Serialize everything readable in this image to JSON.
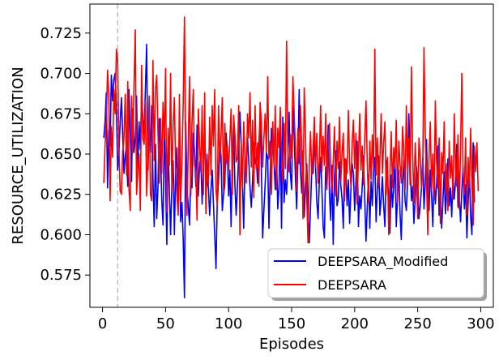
{
  "chart_data": {
    "type": "line",
    "title": "",
    "xlabel": "Episodes",
    "ylabel": "RESOURCE_UTILIZATION",
    "xlim": [
      -10,
      310
    ],
    "ylim": [
      0.555,
      0.743
    ],
    "xticks": [
      0,
      50,
      100,
      150,
      200,
      250,
      300
    ],
    "xtick_labels": [
      "0",
      "50",
      "100",
      "150",
      "200",
      "250",
      "300"
    ],
    "yticks": [
      0.575,
      0.6,
      0.625,
      0.65,
      0.675,
      0.7,
      0.725
    ],
    "ytick_labels": [
      "0.575",
      "0.600",
      "0.625",
      "0.650",
      "0.675",
      "0.700",
      "0.725"
    ],
    "grid": false,
    "vline": {
      "x": 12,
      "color": "#bbbbbb",
      "style": "dashed"
    },
    "legend": {
      "position": "bottom-right"
    },
    "series": [
      {
        "name": "DEEPSARA_Modified",
        "color": "#0000ff",
        "x_start": 1,
        "x_step": 1,
        "values": [
          0.66,
          0.67,
          0.688,
          0.629,
          0.665,
          0.655,
          0.699,
          0.683,
          0.696,
          0.7,
          0.68,
          0.64,
          0.65,
          0.67,
          0.685,
          0.662,
          0.638,
          0.649,
          0.655,
          0.63,
          0.69,
          0.659,
          0.633,
          0.678,
          0.651,
          0.66,
          0.686,
          0.64,
          0.67,
          0.653,
          0.688,
          0.672,
          0.662,
          0.69,
          0.718,
          0.64,
          0.664,
          0.651,
          0.68,
          0.635,
          0.605,
          0.656,
          0.61,
          0.63,
          0.672,
          0.652,
          0.621,
          0.606,
          0.666,
          0.636,
          0.594,
          0.653,
          0.628,
          0.6,
          0.631,
          0.646,
          0.6,
          0.639,
          0.654,
          0.615,
          0.662,
          0.608,
          0.62,
          0.597,
          0.561,
          0.67,
          0.629,
          0.618,
          0.606,
          0.638,
          0.629,
          0.663,
          0.652,
          0.63,
          0.668,
          0.624,
          0.644,
          0.648,
          0.619,
          0.642,
          0.659,
          0.644,
          0.632,
          0.629,
          0.612,
          0.628,
          0.64,
          0.619,
          0.6,
          0.579,
          0.62,
          0.633,
          0.656,
          0.649,
          0.615,
          0.625,
          0.631,
          0.663,
          0.652,
          0.624,
          0.64,
          0.605,
          0.652,
          0.668,
          0.631,
          0.612,
          0.63,
          0.65,
          0.676,
          0.656,
          0.632,
          0.604,
          0.647,
          0.637,
          0.66,
          0.646,
          0.629,
          0.617,
          0.633,
          0.657,
          0.644,
          0.648,
          0.632,
          0.655,
          0.673,
          0.641,
          0.598,
          0.615,
          0.631,
          0.651,
          0.648,
          0.604,
          0.637,
          0.666,
          0.656,
          0.645,
          0.628,
          0.651,
          0.616,
          0.629,
          0.665,
          0.604,
          0.673,
          0.62,
          0.634,
          0.625,
          0.645,
          0.676,
          0.638,
          0.628,
          0.68,
          0.661,
          0.636,
          0.616,
          0.647,
          0.69,
          0.64,
          0.626,
          0.652,
          0.611,
          0.63,
          0.644,
          0.615,
          0.595,
          0.617,
          0.641,
          0.638,
          0.659,
          0.642,
          0.62,
          0.61,
          0.634,
          0.648,
          0.629,
          0.605,
          0.598,
          0.642,
          0.631,
          0.668,
          0.625,
          0.609,
          0.643,
          0.594,
          0.636,
          0.652,
          0.618,
          0.622,
          0.645,
          0.631,
          0.622,
          0.604,
          0.647,
          0.64,
          0.618,
          0.634,
          0.607,
          0.627,
          0.644,
          0.638,
          0.615,
          0.632,
          0.658,
          0.605,
          0.624,
          0.616,
          0.63,
          0.649,
          0.622,
          0.596,
          0.617,
          0.637,
          0.604,
          0.633,
          0.618,
          0.641,
          0.648,
          0.608,
          0.628,
          0.649,
          0.612,
          0.622,
          0.636,
          0.618,
          0.605,
          0.646,
          0.633,
          0.625,
          0.601,
          0.637,
          0.617,
          0.629,
          0.649,
          0.605,
          0.623,
          0.64,
          0.613,
          0.597,
          0.631,
          0.646,
          0.621,
          0.615,
          0.633,
          0.675,
          0.645,
          0.621,
          0.63,
          0.607,
          0.622,
          0.642,
          0.634,
          0.61,
          0.618,
          0.629,
          0.648,
          0.616,
          0.632,
          0.659,
          0.622,
          0.615,
          0.64,
          0.625,
          0.605,
          0.638,
          0.619,
          0.631,
          0.655,
          0.612,
          0.627,
          0.604,
          0.621,
          0.639,
          0.613,
          0.628,
          0.647,
          0.618,
          0.629,
          0.611,
          0.637,
          0.622,
          0.633,
          0.656,
          0.617,
          0.624,
          0.608,
          0.627,
          0.642,
          0.616,
          0.631,
          0.598,
          0.62,
          0.64,
          0.611,
          0.6,
          0.657,
          0.62
        ]
      },
      {
        "name": "DEEPSARA",
        "color": "#ff0000",
        "x_start": 1,
        "x_step": 1,
        "values": [
          0.632,
          0.655,
          0.671,
          0.702,
          0.687,
          0.621,
          0.667,
          0.648,
          0.69,
          0.675,
          0.715,
          0.708,
          0.654,
          0.627,
          0.625,
          0.652,
          0.66,
          0.687,
          0.637,
          0.695,
          0.628,
          0.615,
          0.686,
          0.651,
          0.694,
          0.727,
          0.625,
          0.639,
          0.65,
          0.615,
          0.705,
          0.66,
          0.656,
          0.682,
          0.624,
          0.649,
          0.686,
          0.625,
          0.621,
          0.708,
          0.646,
          0.69,
          0.699,
          0.663,
          0.632,
          0.672,
          0.638,
          0.682,
          0.659,
          0.703,
          0.614,
          0.666,
          0.643,
          0.7,
          0.627,
          0.668,
          0.685,
          0.64,
          0.625,
          0.612,
          0.687,
          0.62,
          0.646,
          0.681,
          0.735,
          0.647,
          0.612,
          0.656,
          0.698,
          0.624,
          0.67,
          0.69,
          0.643,
          0.64,
          0.609,
          0.678,
          0.655,
          0.639,
          0.68,
          0.625,
          0.688,
          0.613,
          0.65,
          0.63,
          0.673,
          0.637,
          0.68,
          0.655,
          0.69,
          0.628,
          0.618,
          0.68,
          0.645,
          0.661,
          0.685,
          0.627,
          0.669,
          0.644,
          0.655,
          0.64,
          0.659,
          0.678,
          0.625,
          0.674,
          0.662,
          0.645,
          0.648,
          0.68,
          0.6,
          0.657,
          0.629,
          0.67,
          0.649,
          0.632,
          0.675,
          0.66,
          0.688,
          0.642,
          0.671,
          0.623,
          0.68,
          0.641,
          0.657,
          0.63,
          0.682,
          0.67,
          0.642,
          0.66,
          0.675,
          0.651,
          0.698,
          0.647,
          0.658,
          0.625,
          0.67,
          0.643,
          0.68,
          0.628,
          0.666,
          0.654,
          0.679,
          0.65,
          0.632,
          0.669,
          0.641,
          0.72,
          0.652,
          0.639,
          0.662,
          0.647,
          0.698,
          0.676,
          0.654,
          0.627,
          0.666,
          0.644,
          0.68,
          0.655,
          0.61,
          0.691,
          0.663,
          0.624,
          0.595,
          0.644,
          0.664,
          0.637,
          0.651,
          0.673,
          0.642,
          0.663,
          0.632,
          0.647,
          0.68,
          0.639,
          0.661,
          0.643,
          0.675,
          0.628,
          0.652,
          0.669,
          0.64,
          0.626,
          0.645,
          0.667,
          0.624,
          0.658,
          0.641,
          0.673,
          0.633,
          0.651,
          0.663,
          0.621,
          0.647,
          0.638,
          0.677,
          0.644,
          0.63,
          0.657,
          0.671,
          0.641,
          0.663,
          0.619,
          0.648,
          0.675,
          0.64,
          0.655,
          0.631,
          0.66,
          0.683,
          0.644,
          0.62,
          0.658,
          0.634,
          0.662,
          0.641,
          0.715,
          0.637,
          0.66,
          0.629,
          0.646,
          0.675,
          0.638,
          0.657,
          0.67,
          0.625,
          0.648,
          0.6,
          0.636,
          0.664,
          0.629,
          0.654,
          0.641,
          0.671,
          0.62,
          0.658,
          0.644,
          0.632,
          0.667,
          0.652,
          0.628,
          0.68,
          0.64,
          0.66,
          0.631,
          0.704,
          0.65,
          0.62,
          0.657,
          0.638,
          0.61,
          0.66,
          0.648,
          0.629,
          0.64,
          0.716,
          0.663,
          0.636,
          0.6,
          0.648,
          0.67,
          0.628,
          0.65,
          0.622,
          0.683,
          0.645,
          0.629,
          0.66,
          0.607,
          0.651,
          0.638,
          0.67,
          0.626,
          0.644,
          0.615,
          0.658,
          0.635,
          0.649,
          0.622,
          0.675,
          0.641,
          0.63,
          0.662,
          0.616,
          0.653,
          0.7,
          0.638,
          0.625,
          0.66,
          0.612,
          0.648,
          0.629,
          0.666,
          0.633,
          0.606,
          0.655,
          0.639,
          0.657,
          0.627
        ]
      }
    ]
  }
}
